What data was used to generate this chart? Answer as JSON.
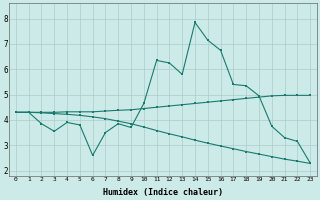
{
  "xlabel": "Humidex (Indice chaleur)",
  "ylabel": "",
  "background_color": "#cceae7",
  "grid_color": "#aacccc",
  "line_color": "#1a7a6e",
  "xlim": [
    -0.5,
    23.5
  ],
  "ylim": [
    1.8,
    8.6
  ],
  "yticks": [
    2,
    3,
    4,
    5,
    6,
    7,
    8
  ],
  "xticks": [
    0,
    1,
    2,
    3,
    4,
    5,
    6,
    7,
    8,
    9,
    10,
    11,
    12,
    13,
    14,
    15,
    16,
    17,
    18,
    19,
    20,
    21,
    22,
    23
  ],
  "line1_x": [
    0,
    1,
    2,
    3,
    4,
    5,
    6,
    7,
    8,
    9,
    10,
    11,
    12,
    13,
    14,
    15,
    16,
    17,
    18,
    19,
    20,
    21,
    22,
    23
  ],
  "line1_y": [
    4.3,
    4.3,
    3.85,
    3.55,
    3.9,
    3.8,
    2.6,
    3.5,
    3.85,
    3.7,
    4.65,
    6.35,
    6.25,
    5.8,
    7.85,
    7.15,
    6.75,
    5.4,
    5.35,
    4.95,
    3.75,
    3.3,
    3.15,
    2.3
  ],
  "line2_x": [
    0,
    1,
    2,
    3,
    4,
    5,
    6,
    7,
    8,
    9,
    10,
    11,
    12,
    13,
    14,
    15,
    16,
    17,
    18,
    19,
    20,
    21,
    22,
    23
  ],
  "line2_y": [
    4.3,
    4.3,
    4.3,
    4.3,
    4.32,
    4.32,
    4.32,
    4.35,
    4.38,
    4.4,
    4.45,
    4.5,
    4.55,
    4.6,
    4.65,
    4.7,
    4.75,
    4.8,
    4.85,
    4.9,
    4.95,
    4.97,
    4.97,
    4.97
  ],
  "line3_x": [
    0,
    1,
    2,
    3,
    4,
    5,
    6,
    7,
    8,
    9,
    10,
    11,
    12,
    13,
    14,
    15,
    16,
    17,
    18,
    19,
    20,
    21,
    22,
    23
  ],
  "line3_y": [
    4.3,
    4.3,
    4.28,
    4.25,
    4.22,
    4.18,
    4.12,
    4.05,
    3.95,
    3.85,
    3.72,
    3.58,
    3.45,
    3.33,
    3.2,
    3.08,
    2.97,
    2.86,
    2.75,
    2.65,
    2.55,
    2.45,
    2.37,
    2.28
  ]
}
